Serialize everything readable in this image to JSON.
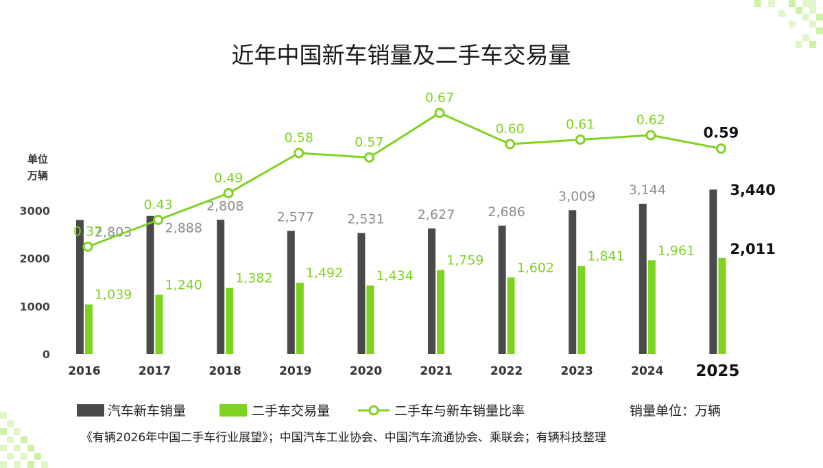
{
  "colors": {
    "new_car": "#4a4a4a",
    "used_car": "#7ed321",
    "ratio_line": "#7ed321",
    "highlight_text": "#111111",
    "deco": "#c9ef9a"
  },
  "chart_data": {
    "type": "bar",
    "title": "近年中国新车销量及二手车交易量",
    "unit_label": [
      "单位",
      "万辆"
    ],
    "categories": [
      "2016",
      "2017",
      "2018",
      "2019",
      "2020",
      "2021",
      "2022",
      "2023",
      "2024",
      "2025"
    ],
    "yticks": [
      "0",
      "1000",
      "2000",
      "3000"
    ],
    "ylim": [
      0,
      3600
    ],
    "series": [
      {
        "name": "汽车新车销量",
        "values": [
          2803,
          2888,
          2808,
          2577,
          2531,
          2627,
          2686,
          3009,
          3144,
          3440
        ],
        "labels": [
          "2,803",
          "2,888",
          "2,808",
          "2,577",
          "2,531",
          "2,627",
          "2,686",
          "3,009",
          "3,144",
          "3,440"
        ]
      },
      {
        "name": "二手车交易量",
        "values": [
          1039,
          1240,
          1382,
          1492,
          1434,
          1759,
          1602,
          1841,
          1961,
          2011
        ],
        "labels": [
          "1,039",
          "1,240",
          "1,382",
          "1,492",
          "1,434",
          "1,759",
          "1,602",
          "1,841",
          "1,961",
          "2,011"
        ]
      },
      {
        "name": "二手车与新车销量比率",
        "type": "line",
        "values": [
          0.37,
          0.43,
          0.49,
          0.58,
          0.57,
          0.67,
          0.6,
          0.61,
          0.62,
          0.59
        ],
        "labels": [
          "0.37",
          "0.43",
          "0.49",
          "0.58",
          "0.57",
          "0.67",
          "0.60",
          "0.61",
          "0.62",
          "0.59"
        ]
      }
    ],
    "highlight_category": "2025",
    "legend_position": "bottom",
    "grid": false
  },
  "legend": {
    "new_car": "汽车新车销量",
    "used_car": "二手车交易量",
    "ratio": "二手车与新车销量比率",
    "unit_note": "销量单位：万辆"
  },
  "source": "《有辆2026年中国二手车行业展望》；中国汽车工业协会、中国汽车流通协会、乘联会；有辆科技整理"
}
